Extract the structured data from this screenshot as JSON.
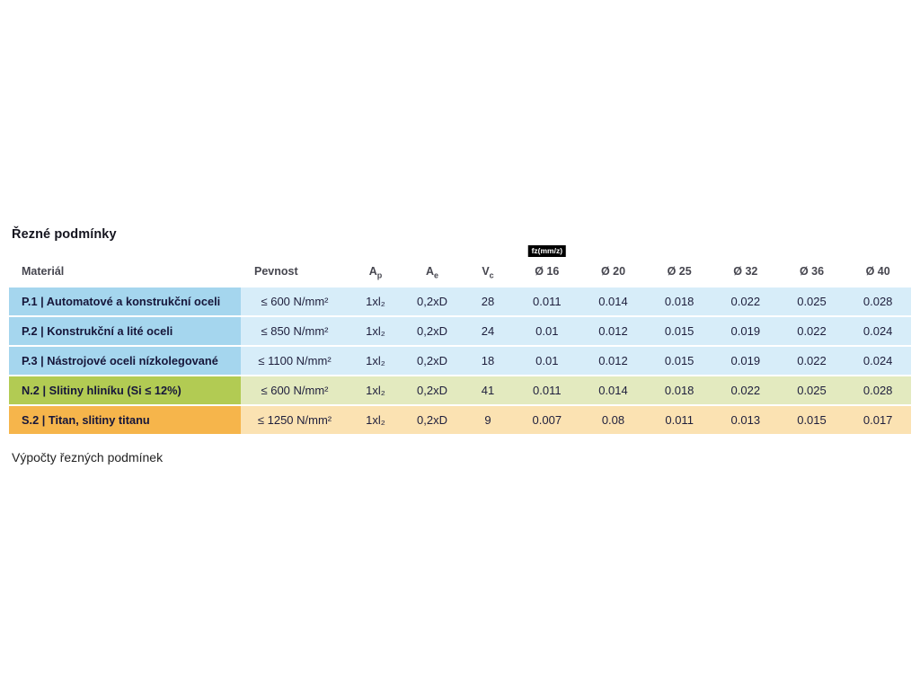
{
  "page": {
    "title": "Řezné podmínky",
    "footer_text": "Výpočty řezných podmínek"
  },
  "table": {
    "fz_unit_label": "fz(mm/z)",
    "headers": {
      "material": "Materiál",
      "pevnost": "Pevnost",
      "ap": {
        "base": "A",
        "sub": "p"
      },
      "ae": {
        "base": "A",
        "sub": "e"
      },
      "vc": {
        "base": "V",
        "sub": "c"
      },
      "diameters": [
        "Ø 16",
        "Ø 20",
        "Ø 25",
        "Ø 32",
        "Ø 36",
        "Ø 40"
      ]
    },
    "colors": {
      "blue_dark": "#a5d6ee",
      "blue_light": "#d7edf9",
      "green_dark": "#b2cb53",
      "green_light": "#e3eabf",
      "orange_dark": "#f6b54b",
      "orange_light": "#fbe2b2",
      "badge_bg": "#000000",
      "badge_text": "#ffffff"
    },
    "rows": [
      {
        "theme": "blue",
        "material": "P.1 | Automatové a konstrukční oceli",
        "pevnost": "≤ 600 N/mm²",
        "ap": "1xl₂",
        "ae": "0,2xD",
        "vc": "28",
        "fz": [
          "0.011",
          "0.014",
          "0.018",
          "0.022",
          "0.025",
          "0.028"
        ]
      },
      {
        "theme": "blue",
        "material": "P.2 | Konstrukční a lité oceli",
        "pevnost": "≤ 850 N/mm²",
        "ap": "1xl₂",
        "ae": "0,2xD",
        "vc": "24",
        "fz": [
          "0.01",
          "0.012",
          "0.015",
          "0.019",
          "0.022",
          "0.024"
        ]
      },
      {
        "theme": "blue",
        "material": "P.3 | Nástrojové oceli nízkolegované",
        "pevnost": "≤ 1100 N/mm²",
        "ap": "1xl₂",
        "ae": "0,2xD",
        "vc": "18",
        "fz": [
          "0.01",
          "0.012",
          "0.015",
          "0.019",
          "0.022",
          "0.024"
        ]
      },
      {
        "theme": "green",
        "material": "N.2 | Slitiny hliníku (Si ≤ 12%)",
        "pevnost": "≤ 600 N/mm²",
        "ap": "1xl₂",
        "ae": "0,2xD",
        "vc": "41",
        "fz": [
          "0.011",
          "0.014",
          "0.018",
          "0.022",
          "0.025",
          "0.028"
        ]
      },
      {
        "theme": "orange",
        "material": "S.2 | Titan, slitiny titanu",
        "pevnost": "≤ 1250 N/mm²",
        "ap": "1xl₂",
        "ae": "0,2xD",
        "vc": "9",
        "fz": [
          "0.007",
          "0.08",
          "0.011",
          "0.013",
          "0.015",
          "0.017"
        ]
      }
    ]
  }
}
